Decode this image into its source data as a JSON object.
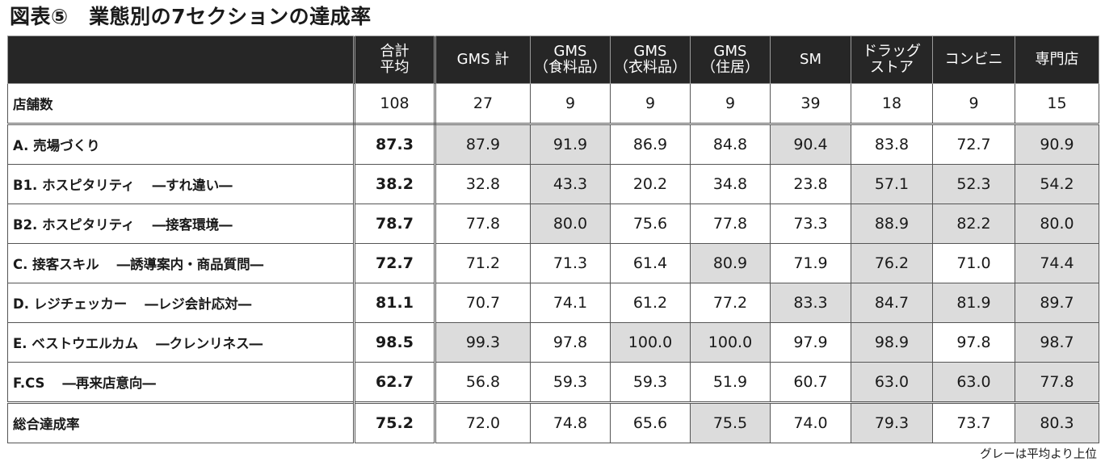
{
  "title": "図表⑤　業態別の7セクションの達成率",
  "note": "グレーは平均より上位",
  "columns": [
    {
      "l1": "合計",
      "l2": "平均"
    },
    {
      "l1": "GMS 計",
      "l2": ""
    },
    {
      "l1": "GMS",
      "l2": "（食料品）"
    },
    {
      "l1": "GMS",
      "l2": "（衣料品）"
    },
    {
      "l1": "GMS",
      "l2": "（住居）"
    },
    {
      "l1": "SM",
      "l2": ""
    },
    {
      "l1": "ドラッグ",
      "l2": "ストア"
    },
    {
      "l1": "コンビニ",
      "l2": ""
    },
    {
      "l1": "専門店",
      "l2": ""
    }
  ],
  "rows": [
    {
      "label": "店舗数",
      "sub": "",
      "avg": "108",
      "values": [
        "27",
        "9",
        "9",
        "9",
        "39",
        "18",
        "9",
        "15"
      ],
      "gray": []
    },
    {
      "label": "A. 売場づくり",
      "sub": "",
      "avg": "87.3",
      "values": [
        "87.9",
        "91.9",
        "86.9",
        "84.8",
        "90.4",
        "83.8",
        "72.7",
        "90.9"
      ],
      "gray": [
        0,
        1,
        4,
        7
      ]
    },
    {
      "label": "B1. ホスピタリティ",
      "sub": "―すれ違い―",
      "avg": "38.2",
      "values": [
        "32.8",
        "43.3",
        "20.2",
        "34.8",
        "23.8",
        "57.1",
        "52.3",
        "54.2"
      ],
      "gray": [
        1,
        5,
        6,
        7
      ]
    },
    {
      "label": "B2. ホスピタリティ",
      "sub": "―接客環境―",
      "avg": "78.7",
      "values": [
        "77.8",
        "80.0",
        "75.6",
        "77.8",
        "73.3",
        "88.9",
        "82.2",
        "80.0"
      ],
      "gray": [
        1,
        5,
        6,
        7
      ]
    },
    {
      "label": "C. 接客スキル",
      "sub": "―誘導案内・商品質問―",
      "avg": "72.7",
      "values": [
        "71.2",
        "71.3",
        "61.4",
        "80.9",
        "71.9",
        "76.2",
        "71.0",
        "74.4"
      ],
      "gray": [
        3,
        5,
        7
      ]
    },
    {
      "label": "D. レジチェッカー",
      "sub": "―レジ会計応対―",
      "avg": "81.1",
      "values": [
        "70.7",
        "74.1",
        "61.2",
        "77.2",
        "83.3",
        "84.7",
        "81.9",
        "89.7"
      ],
      "gray": [
        4,
        5,
        6,
        7
      ]
    },
    {
      "label": "E. ベストウエルカム",
      "sub": "―クレンリネス―",
      "avg": "98.5",
      "values": [
        "99.3",
        "97.8",
        "100.0",
        "100.0",
        "97.9",
        "98.9",
        "97.8",
        "98.7"
      ],
      "gray": [
        0,
        2,
        3,
        5,
        7
      ]
    },
    {
      "label": "F.CS",
      "sub": "―再来店意向―",
      "avg": "62.7",
      "values": [
        "56.8",
        "59.3",
        "59.3",
        "51.9",
        "60.7",
        "63.0",
        "63.0",
        "77.8"
      ],
      "gray": [
        5,
        6,
        7
      ]
    },
    {
      "label": "総合達成率",
      "sub": "",
      "avg": "75.2",
      "values": [
        "72.0",
        "74.8",
        "65.6",
        "75.5",
        "74.0",
        "79.3",
        "73.7",
        "80.3"
      ],
      "gray": [
        3,
        5,
        7
      ]
    }
  ]
}
